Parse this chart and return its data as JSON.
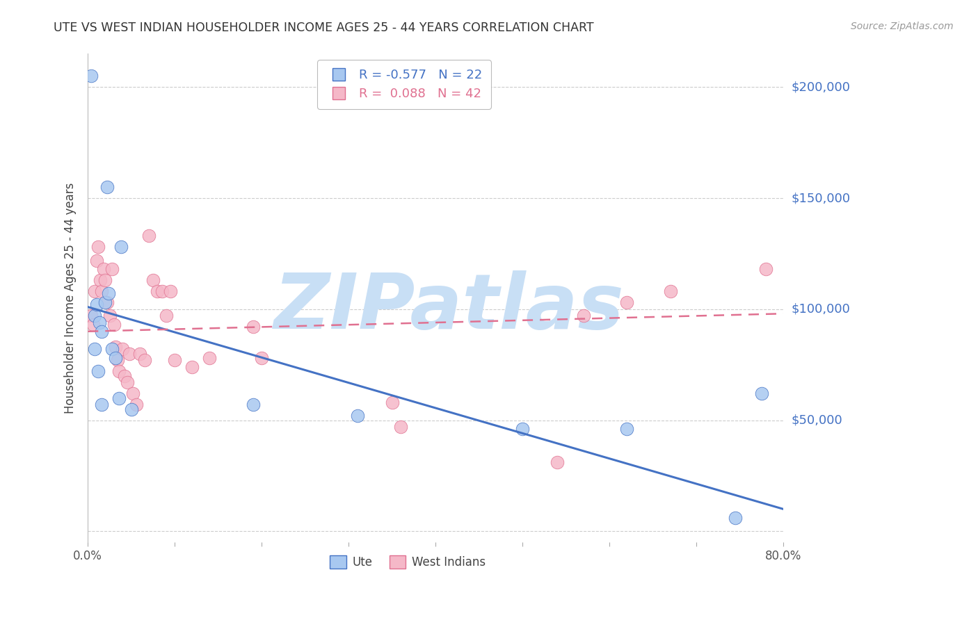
{
  "title": "UTE VS WEST INDIAN HOUSEHOLDER INCOME AGES 25 - 44 YEARS CORRELATION CHART",
  "source": "Source: ZipAtlas.com",
  "ylabel": "Householder Income Ages 25 - 44 years",
  "xlim": [
    0.0,
    0.8
  ],
  "ylim": [
    -5000,
    215000
  ],
  "yticks": [
    0,
    50000,
    100000,
    150000,
    200000
  ],
  "ytick_labels": [
    "",
    "$50,000",
    "$100,000",
    "$150,000",
    "$200,000"
  ],
  "xticks": [
    0.0,
    0.1,
    0.2,
    0.3,
    0.4,
    0.5,
    0.6,
    0.7,
    0.8
  ],
  "xtick_labels": [
    "0.0%",
    "",
    "",
    "",
    "",
    "",
    "",
    "",
    "80.0%"
  ],
  "ute_color": "#A8C8F0",
  "west_indian_color": "#F5B8C8",
  "ute_line_color": "#4472C4",
  "west_indian_line_color": "#E07090",
  "legend_r_ute": "-0.577",
  "legend_n_ute": "22",
  "legend_r_west": "0.088",
  "legend_n_west": "42",
  "ute_x": [
    0.004,
    0.022,
    0.038,
    0.008,
    0.01,
    0.013,
    0.016,
    0.02,
    0.024,
    0.008,
    0.012,
    0.028,
    0.032,
    0.016,
    0.036,
    0.05,
    0.19,
    0.31,
    0.5,
    0.62,
    0.745,
    0.775
  ],
  "ute_y": [
    205000,
    155000,
    128000,
    97000,
    102000,
    94000,
    90000,
    103000,
    107000,
    82000,
    72000,
    82000,
    78000,
    57000,
    60000,
    55000,
    57000,
    52000,
    46000,
    46000,
    6000,
    62000
  ],
  "west_indian_x": [
    0.004,
    0.006,
    0.008,
    0.01,
    0.012,
    0.014,
    0.016,
    0.018,
    0.02,
    0.022,
    0.025,
    0.028,
    0.03,
    0.032,
    0.034,
    0.036,
    0.04,
    0.042,
    0.045,
    0.048,
    0.052,
    0.056,
    0.06,
    0.065,
    0.07,
    0.075,
    0.08,
    0.085,
    0.09,
    0.095,
    0.1,
    0.12,
    0.14,
    0.19,
    0.2,
    0.35,
    0.36,
    0.54,
    0.57,
    0.62,
    0.67,
    0.78
  ],
  "west_indian_y": [
    97000,
    93000,
    108000,
    122000,
    128000,
    113000,
    108000,
    118000,
    113000,
    103000,
    97000,
    118000,
    93000,
    83000,
    77000,
    72000,
    82000,
    70000,
    67000,
    80000,
    62000,
    57000,
    80000,
    77000,
    133000,
    113000,
    108000,
    108000,
    97000,
    108000,
    77000,
    74000,
    78000,
    92000,
    78000,
    58000,
    47000,
    31000,
    97000,
    103000,
    108000,
    118000
  ],
  "ute_trendline_x": [
    0.0,
    0.8
  ],
  "ute_trendline_y": [
    101000,
    10000
  ],
  "west_trendline_x": [
    0.0,
    0.8
  ],
  "west_trendline_y": [
    90000,
    98000
  ],
  "background_color": "#FFFFFF",
  "grid_color": "#CCCCCC",
  "title_color": "#333333",
  "axis_label_color": "#444444",
  "ytick_label_color": "#4472C4",
  "source_color": "#999999",
  "watermark_text": "ZIPatlas",
  "watermark_color": "#C8DFF5",
  "watermark_fontsize": 80,
  "legend_ute_label": "Ute",
  "legend_west_label": "West Indians"
}
